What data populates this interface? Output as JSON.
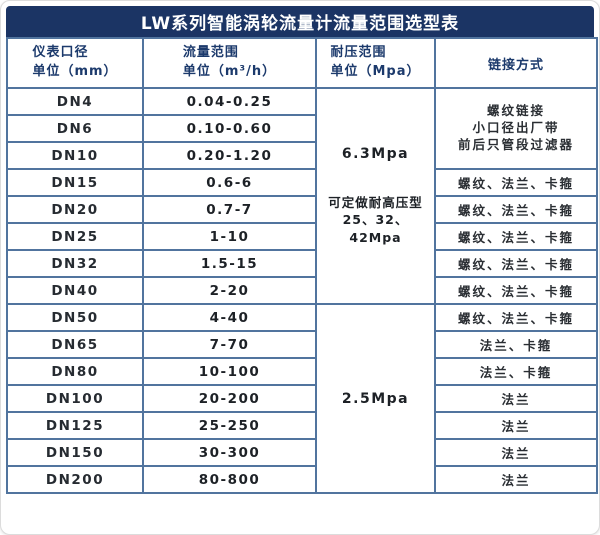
{
  "title": "LW系列智能涡轮流量计流量范围选型表",
  "header": {
    "col1": {
      "line1": "仪表口径",
      "line2": "单位（mm）"
    },
    "col2": {
      "line1": "流量范围",
      "line2": "单位（m³/h）"
    },
    "col3": {
      "line1": "耐压范围",
      "line2": "单位（Mpa）"
    },
    "col4": {
      "line1": "链接方式"
    }
  },
  "pressure": {
    "high_group": {
      "value": "6.3Mpa",
      "note_line1": "可定做耐高压型",
      "note_line2": "25、32、42Mpa"
    },
    "low_group": {
      "value": "2.5Mpa"
    }
  },
  "connection_small_bore": {
    "line1": "螺纹链接",
    "line2": "小口径出厂带",
    "line3": "前后只管段过滤器"
  },
  "rows": [
    {
      "dn": "DN4",
      "flow": "0.04-0.25"
    },
    {
      "dn": "DN6",
      "flow": "0.10-0.60"
    },
    {
      "dn": "DN10",
      "flow": "0.20-1.20"
    },
    {
      "dn": "DN15",
      "flow": "0.6-6",
      "conn": "螺纹、法兰、卡箍"
    },
    {
      "dn": "DN20",
      "flow": "0.7-7",
      "conn": "螺纹、法兰、卡箍"
    },
    {
      "dn": "DN25",
      "flow": "1-10",
      "conn": "螺纹、法兰、卡箍"
    },
    {
      "dn": "DN32",
      "flow": "1.5-15",
      "conn": "螺纹、法兰、卡箍"
    },
    {
      "dn": "DN40",
      "flow": "2-20",
      "conn": "螺纹、法兰、卡箍"
    },
    {
      "dn": "DN50",
      "flow": "4-40",
      "conn": "螺纹、法兰、卡箍"
    },
    {
      "dn": "DN65",
      "flow": "7-70",
      "conn": "法兰、卡箍"
    },
    {
      "dn": "DN80",
      "flow": "10-100",
      "conn": "法兰、卡箍"
    },
    {
      "dn": "DN100",
      "flow": "20-200",
      "conn": "法兰"
    },
    {
      "dn": "DN125",
      "flow": "25-250",
      "conn": "法兰"
    },
    {
      "dn": "DN150",
      "flow": "30-300",
      "conn": "法兰"
    },
    {
      "dn": "DN200",
      "flow": "80-800",
      "conn": "法兰"
    }
  ],
  "colors": {
    "title_bg": "#1b3464",
    "border": "#51749e",
    "header_bg": "#e2e8ee",
    "header_text": "#1c3a6c",
    "body_text": "#1d2126"
  }
}
